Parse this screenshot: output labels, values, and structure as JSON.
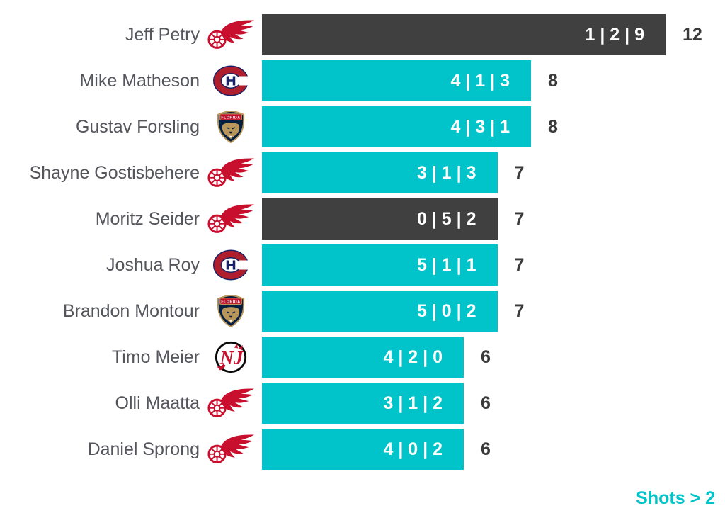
{
  "chart_data": {
    "type": "bar",
    "orientation": "horizontal",
    "title": "",
    "caption": "Shots > 2",
    "bar_label_format": "period1 | period2 | period3",
    "value_axis_range": [
      0,
      12
    ],
    "grid": false,
    "legend": "none",
    "rows": [
      {
        "player": "Jeff Petry",
        "team": "Detroit Red Wings",
        "team_code": "DET",
        "periods": [
          1,
          2,
          9
        ],
        "bar_label": "1 | 2 | 9",
        "total": 12,
        "highlighted": true
      },
      {
        "player": "Mike Matheson",
        "team": "Montreal Canadiens",
        "team_code": "MTL",
        "periods": [
          4,
          1,
          3
        ],
        "bar_label": "4 | 1 | 3",
        "total": 8,
        "highlighted": false
      },
      {
        "player": "Gustav Forsling",
        "team": "Florida Panthers",
        "team_code": "FLA",
        "periods": [
          4,
          3,
          1
        ],
        "bar_label": "4 | 3 | 1",
        "total": 8,
        "highlighted": false
      },
      {
        "player": "Shayne Gostisbehere",
        "team": "Detroit Red Wings",
        "team_code": "DET",
        "periods": [
          3,
          1,
          3
        ],
        "bar_label": "3 | 1 | 3",
        "total": 7,
        "highlighted": false
      },
      {
        "player": "Moritz Seider",
        "team": "Detroit Red Wings",
        "team_code": "DET",
        "periods": [
          0,
          5,
          2
        ],
        "bar_label": "0 | 5 | 2",
        "total": 7,
        "highlighted": true
      },
      {
        "player": "Joshua Roy",
        "team": "Montreal Canadiens",
        "team_code": "MTL",
        "periods": [
          5,
          1,
          1
        ],
        "bar_label": "5 | 1 | 1",
        "total": 7,
        "highlighted": false
      },
      {
        "player": "Brandon Montour",
        "team": "Florida Panthers",
        "team_code": "FLA",
        "periods": [
          5,
          0,
          2
        ],
        "bar_label": "5 | 0 | 2",
        "total": 7,
        "highlighted": false
      },
      {
        "player": "Timo Meier",
        "team": "New Jersey Devils",
        "team_code": "NJD",
        "periods": [
          4,
          2,
          0
        ],
        "bar_label": "4 | 2 | 0",
        "total": 6,
        "highlighted": false
      },
      {
        "player": "Olli Maatta",
        "team": "Detroit Red Wings",
        "team_code": "DET",
        "periods": [
          3,
          1,
          2
        ],
        "bar_label": "3 | 1 | 2",
        "total": 6,
        "highlighted": false
      },
      {
        "player": "Daniel Sprong",
        "team": "Detroit Red Wings",
        "team_code": "DET",
        "periods": [
          4,
          0,
          2
        ],
        "bar_label": "4 | 0 | 2",
        "total": 6,
        "highlighted": false
      }
    ],
    "colors": {
      "bar_default": "#00c4c9",
      "bar_highlight": "#404040",
      "bar_label_text": "#ffffff",
      "player_name_text": "#55565c",
      "total_text": "#3a3a3a",
      "caption_text": "#00c4c9"
    },
    "icons": {
      "DET": "detroit-red-wings-logo",
      "MTL": "montreal-canadiens-logo",
      "FLA": "florida-panthers-logo",
      "NJD": "new-jersey-devils-logo",
      "florida_banner_text": "FLORIDA"
    }
  }
}
